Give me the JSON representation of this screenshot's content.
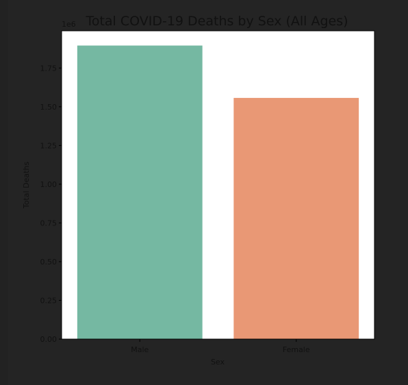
{
  "chart_data": {
    "type": "bar",
    "title": "Total COVID-19 Deaths by Sex (All Ages)",
    "xlabel": "Sex",
    "ylabel": "Total Deaths",
    "offset_text": "1e6",
    "categories": [
      "Male",
      "Female"
    ],
    "values": [
      1895000,
      1557000
    ],
    "colors": [
      "#75b8a2",
      "#e99875"
    ],
    "ylim": [
      0,
      1990000
    ],
    "yticks": [
      0,
      250000,
      500000,
      750000,
      1000000,
      1250000,
      1500000,
      1750000
    ],
    "ytick_labels": [
      "0.00",
      "0.25",
      "0.50",
      "0.75",
      "1.00",
      "1.25",
      "1.50",
      "1.75"
    ],
    "grid": false,
    "legend": "none"
  }
}
